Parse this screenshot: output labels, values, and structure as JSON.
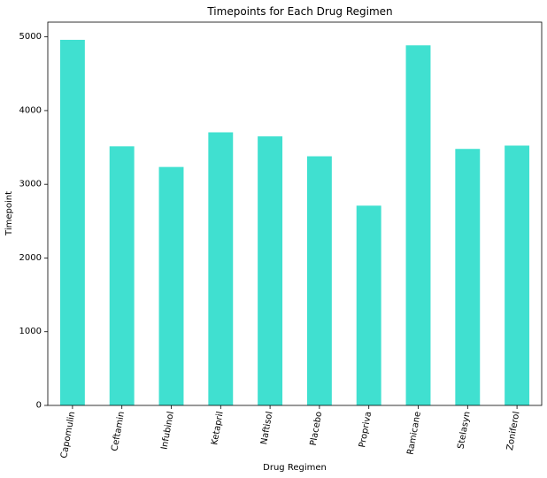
{
  "chart_data": {
    "type": "bar",
    "title": "Timepoints for Each Drug Regimen",
    "xlabel": "Drug Regimen",
    "ylabel": "Timepoint",
    "categories": [
      "Capomulin",
      "Ceftamin",
      "Infubinol",
      "Ketapril",
      "Naftisol",
      "Placebo",
      "Propriva",
      "Ramicane",
      "Stelasyn",
      "Zoniferol"
    ],
    "values": [
      4960,
      3515,
      3235,
      3705,
      3650,
      3380,
      2710,
      4885,
      3480,
      3525
    ],
    "ylim": [
      0,
      5200
    ],
    "yticks": [
      0,
      1000,
      2000,
      3000,
      4000,
      5000
    ],
    "bar_color": "#40e0d0",
    "grid": false,
    "legend": "none",
    "xtick_rotation": -80
  }
}
